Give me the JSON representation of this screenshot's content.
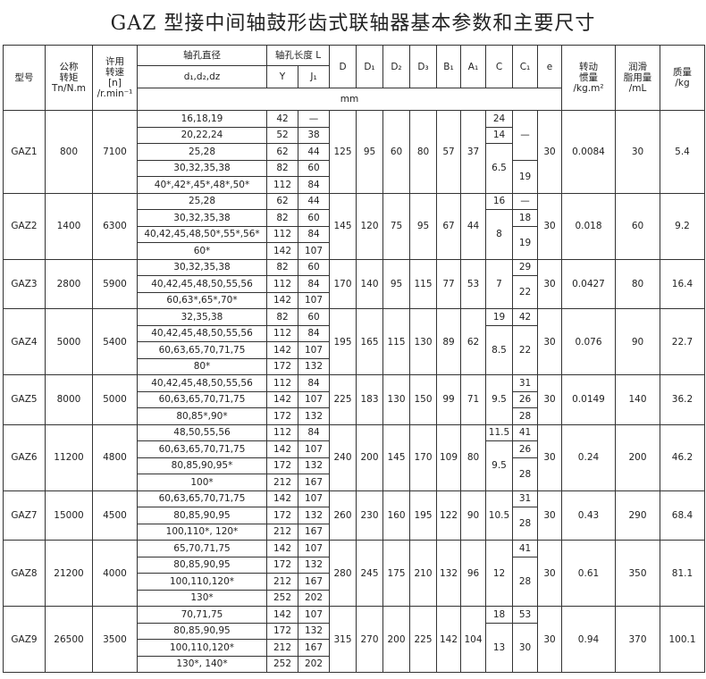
{
  "title": "GAZ 型接中间轴鼓形齿式联轴器基本参数和主要尺寸",
  "header": {
    "model": [
      "型号"
    ],
    "torque": [
      "公称",
      "转矩",
      "Tn/N.m"
    ],
    "speed": [
      "许用",
      "转速",
      "[n]",
      "/r.min⁻¹"
    ],
    "bore": "轴孔直径",
    "bore_sub": "d₁,d₂,dz",
    "length": "轴孔长度 L",
    "y": "Y",
    "j1": "J₁",
    "dims": [
      "D",
      "D₁",
      "D₂",
      "D₃",
      "B₁",
      "A₁",
      "C",
      "C₁",
      "e"
    ],
    "inertia": [
      "转动",
      "惯量",
      "/kg.m²"
    ],
    "grease": [
      "润滑",
      "脂用量",
      "/mL"
    ],
    "mass": [
      "质量",
      "/kg"
    ],
    "unit": "mm"
  },
  "groups": [
    {
      "model": "GAZ1",
      "torque": 800,
      "speed": 7100,
      "bores": [
        [
          "16,18,19",
          42,
          "—"
        ],
        [
          "20,22,24",
          52,
          38
        ],
        [
          "25,28",
          62,
          44
        ],
        [
          "30,32,35,38",
          82,
          60
        ],
        [
          "40*,42*,45*,48*,50*",
          112,
          84
        ]
      ],
      "dims": [
        125,
        95,
        60,
        80,
        57,
        37
      ],
      "c": [
        24,
        14,
        6.5,
        null,
        null
      ],
      "c1": [
        "—",
        null,
        null,
        19,
        null
      ],
      "e": 30,
      "inertia": 0.0084,
      "grease": 30,
      "mass": 5.4
    },
    {
      "model": "GAZ2",
      "torque": 1400,
      "speed": 6300,
      "bores": [
        [
          "25,28",
          62,
          44
        ],
        [
          "30,32,35,38",
          82,
          60
        ],
        [
          "40,42,45,48,50*,55*,56*",
          112,
          84
        ],
        [
          "60*",
          142,
          107
        ]
      ],
      "dims": [
        145,
        120,
        75,
        95,
        67,
        44
      ],
      "c": [
        16,
        8,
        null,
        null
      ],
      "c1": [
        "—",
        18,
        19,
        null
      ],
      "e": 30,
      "inertia": 0.018,
      "grease": 60,
      "mass": 9.2
    },
    {
      "model": "GAZ3",
      "torque": 2800,
      "speed": 5900,
      "bores": [
        [
          "30,32,35,38",
          82,
          60
        ],
        [
          "40,42,45,48,50,55,56",
          112,
          84
        ],
        [
          "60,63*,65*,70*",
          142,
          107
        ]
      ],
      "dims": [
        170,
        140,
        95,
        115,
        77,
        53
      ],
      "c": [
        7,
        null,
        null
      ],
      "c1": [
        29,
        22,
        null
      ],
      "e": 30,
      "inertia": 0.0427,
      "grease": 80,
      "mass": 16.4
    },
    {
      "model": "GAZ4",
      "torque": 5000,
      "speed": 5400,
      "bores": [
        [
          "32,35,38",
          82,
          60
        ],
        [
          "40,42,45,48,50,55,56",
          112,
          84
        ],
        [
          "60,63,65,70,71,75",
          142,
          107
        ],
        [
          "80*",
          172,
          132
        ]
      ],
      "dims": [
        195,
        165,
        115,
        130,
        89,
        62
      ],
      "c": [
        19,
        8.5,
        null,
        null
      ],
      "c1": [
        42,
        22,
        null,
        null
      ],
      "e": 30,
      "inertia": 0.076,
      "grease": 90,
      "mass": 22.7
    },
    {
      "model": "GAZ5",
      "torque": 8000,
      "speed": 5000,
      "bores": [
        [
          "40,42,45,48,50,55,56",
          112,
          84
        ],
        [
          "60,63,65,70,71,75",
          142,
          107
        ],
        [
          "80,85*,90*",
          172,
          132
        ]
      ],
      "dims": [
        225,
        183,
        130,
        150,
        99,
        71
      ],
      "c": [
        9.5,
        null,
        null
      ],
      "c1": [
        31,
        26,
        28
      ],
      "e": 30,
      "inertia": 0.0149,
      "grease": 140,
      "mass": 36.2
    },
    {
      "model": "GAZ6",
      "torque": 11200,
      "speed": 4800,
      "bores": [
        [
          "48,50,55,56",
          112,
          84
        ],
        [
          "60,63,65,70,71,75",
          142,
          107
        ],
        [
          "80,85,90,95*",
          172,
          132
        ],
        [
          "100*",
          212,
          167
        ]
      ],
      "dims": [
        240,
        200,
        145,
        170,
        109,
        80
      ],
      "c": [
        11.5,
        9.5,
        null,
        null
      ],
      "c1": [
        41,
        26,
        28,
        null
      ],
      "e": 30,
      "inertia": 0.24,
      "grease": 200,
      "mass": 46.2
    },
    {
      "model": "GAZ7",
      "torque": 15000,
      "speed": 4500,
      "bores": [
        [
          "60,63,65,70,71,75",
          142,
          107
        ],
        [
          "80,85,90,95",
          172,
          132
        ],
        [
          "100,110*, 120*",
          212,
          167
        ]
      ],
      "dims": [
        260,
        230,
        160,
        195,
        122,
        90
      ],
      "c": [
        10.5,
        null,
        null
      ],
      "c1": [
        31,
        28,
        null
      ],
      "e": 30,
      "inertia": 0.43,
      "grease": 290,
      "mass": 68.4
    },
    {
      "model": "GAZ8",
      "torque": 21200,
      "speed": 4000,
      "bores": [
        [
          "65,70,71,75",
          142,
          107
        ],
        [
          "80,85,90,95",
          172,
          132
        ],
        [
          "100,110,120*",
          212,
          167
        ],
        [
          "130*",
          252,
          202
        ]
      ],
      "dims": [
        280,
        245,
        175,
        210,
        132,
        96
      ],
      "c": [
        12,
        null,
        null,
        null
      ],
      "c1": [
        41,
        28,
        null,
        null
      ],
      "e": 30,
      "inertia": 0.61,
      "grease": 350,
      "mass": 81.1
    },
    {
      "model": "GAZ9",
      "torque": 26500,
      "speed": 3500,
      "bores": [
        [
          "70,71,75",
          142,
          107
        ],
        [
          "80,85,90,95",
          172,
          132
        ],
        [
          "100,110,120*",
          212,
          167
        ],
        [
          "130*, 140*",
          252,
          202
        ]
      ],
      "dims": [
        315,
        270,
        200,
        225,
        142,
        104
      ],
      "c": [
        18,
        13,
        null,
        null
      ],
      "c1": [
        53,
        30,
        null,
        null
      ],
      "e": 30,
      "inertia": 0.94,
      "grease": 370,
      "mass": 100.1
    }
  ]
}
